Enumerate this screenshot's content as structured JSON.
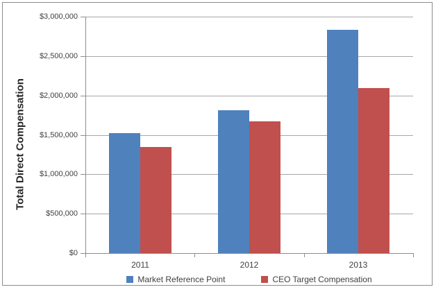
{
  "chart_data": {
    "type": "bar",
    "title": "",
    "ylabel": "Total Direct Compensation",
    "xlabel": "",
    "categories": [
      "2011",
      "2012",
      "2013"
    ],
    "series": [
      {
        "name": "Market Reference Point",
        "color": "#4F81BD",
        "values": [
          1520000,
          1810000,
          2830000
        ]
      },
      {
        "name": "CEO Target Compensation",
        "color": "#C0504D",
        "values": [
          1350000,
          1675000,
          2090000
        ]
      }
    ],
    "ylim": [
      0,
      3000000
    ],
    "ytick_interval": 500000,
    "ytick_labels": [
      "$0",
      "$500,000",
      "$1,000,000",
      "$1,500,000",
      "$2,000,000",
      "$2,500,000",
      "$3,000,000"
    ],
    "grid": true,
    "legend_position": "bottom"
  },
  "colors": {
    "gridline": "#A6A6A6",
    "axis_line": "#8C8C8C",
    "frame_border": "#8C8C8C",
    "text": "#404040",
    "background": "#FFFFFF"
  }
}
